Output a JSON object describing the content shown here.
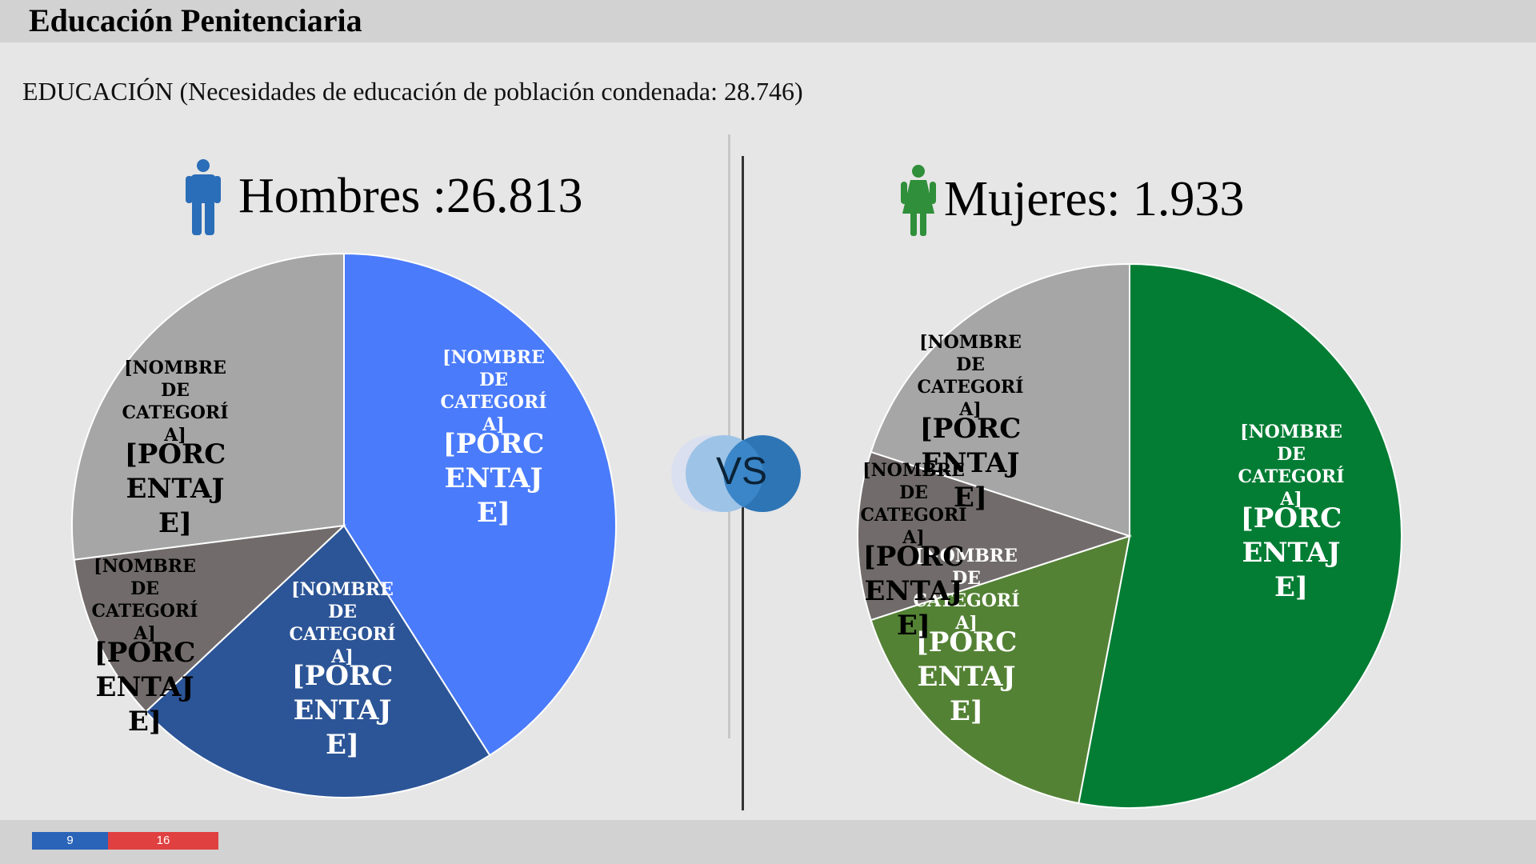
{
  "header": {
    "title": "Educación Penitenciaria"
  },
  "subtitle": "EDUCACIÓN (Necesidades de educación de población condenada: 28.746)",
  "men": {
    "heading": "Hombres :26.813",
    "icon": "man-icon",
    "icon_color": "#2a6db8"
  },
  "women": {
    "heading": "Mujeres: 1.933",
    "icon": "woman-icon",
    "icon_color": "#2f8f3a"
  },
  "vs_label": "VS",
  "footer": {
    "page_current": "9",
    "page_total": "16"
  },
  "chart_data": [
    {
      "type": "pie",
      "name": "Hombres",
      "slices": [
        {
          "value": 41,
          "color": "#4a7bfa",
          "label_name": "[NOMBRE DE CATEGORÍ A]",
          "label_value": "[PORC ENTAJ E]",
          "text_color": "#ffffff"
        },
        {
          "value": 22,
          "color": "#2c5597",
          "label_name": "[NOMBRE DE CATEGORÍ A]",
          "label_value": "[PORC ENTAJ E]",
          "text_color": "#ffffff"
        },
        {
          "value": 10,
          "color": "#716c6b",
          "label_name": "[NOMBRE DE CATEGORÍ A]",
          "label_value": "[PORC ENTAJ E]",
          "text_color": "#000000"
        },
        {
          "value": 27,
          "color": "#a6a6a6",
          "label_name": "[NOMBRE DE CATEGORÍ A]",
          "label_value": "[PORC ENTAJ E]",
          "text_color": "#000000"
        }
      ]
    },
    {
      "type": "pie",
      "name": "Mujeres",
      "slices": [
        {
          "value": 53,
          "color": "#037d34",
          "label_name": "[NOMBRE DE CATEGORÍ A]",
          "label_value": "[PORC ENTAJ E]",
          "text_color": "#ffffff"
        },
        {
          "value": 17,
          "color": "#548235",
          "label_name": "[NOMBRE DE CATEGORÍ A]",
          "label_value": "[PORC ENTAJ E]",
          "text_color": "#ffffff"
        },
        {
          "value": 10,
          "color": "#716c6b",
          "label_name": "[NOMBRE DE CATEGORÍ A]",
          "label_value": "[PORC ENTAJ E]",
          "text_color": "#000000"
        },
        {
          "value": 20,
          "color": "#a6a6a6",
          "label_name": "[NOMBRE DE CATEGORÍ A]",
          "label_value": "[PORC ENTAJ E]",
          "text_color": "#000000"
        }
      ]
    }
  ]
}
